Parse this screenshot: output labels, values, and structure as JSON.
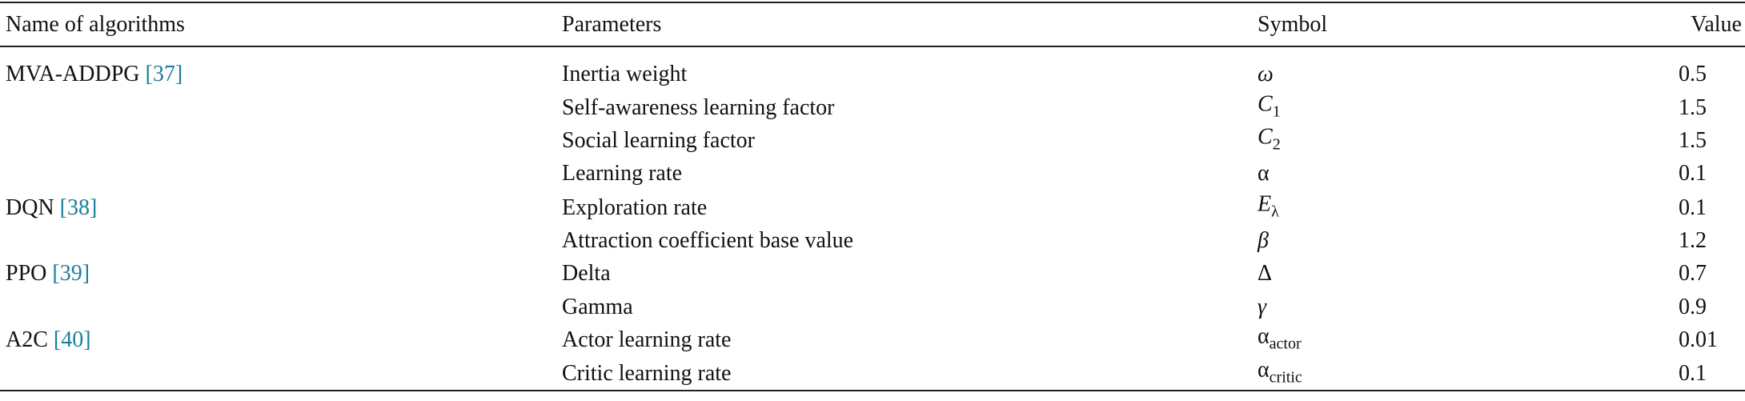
{
  "table": {
    "header": [
      "Name of algorithms",
      "Parameters",
      "Symbol",
      "Value"
    ],
    "rows": [
      {
        "algorithm": "MVA-ADDPG",
        "ref": "[37]",
        "parameter": "Inertia weight",
        "symbol": {
          "base": "ω",
          "italic": true
        },
        "value": "0.5"
      },
      {
        "parameter": "Self-awareness learning factor",
        "symbol": {
          "base": "C",
          "sub": "1",
          "italic": true
        },
        "value": "1.5"
      },
      {
        "parameter": "Social learning factor",
        "symbol": {
          "base": "C",
          "sub": "2",
          "italic": true
        },
        "value": "1.5"
      },
      {
        "parameter": "Learning rate",
        "symbol": {
          "base": "α",
          "italic": false
        },
        "value": "0.1"
      },
      {
        "algorithm": "DQN",
        "ref": "[38]",
        "parameter": "Exploration rate",
        "symbol": {
          "base": "E",
          "sub": "λ",
          "italic": true
        },
        "value": "0.1"
      },
      {
        "parameter": "Attraction coefficient base value",
        "symbol": {
          "base": "β",
          "italic": true
        },
        "value": "1.2"
      },
      {
        "algorithm": "PPO",
        "ref": "[39]",
        "parameter": "Delta",
        "symbol": {
          "base": "Δ",
          "italic": false
        },
        "value": "0.7"
      },
      {
        "parameter": "Gamma",
        "symbol": {
          "base": "γ",
          "italic": true
        },
        "value": "0.9"
      },
      {
        "algorithm": "A2C",
        "ref": "[40]",
        "parameter": "Actor learning rate",
        "symbol": {
          "base": "α",
          "sub": "actor",
          "italic": false
        },
        "value": "0.01"
      },
      {
        "parameter": "Critic learning rate",
        "symbol": {
          "base": "α",
          "sub": "critic",
          "italic": false
        },
        "value": "0.1"
      }
    ]
  }
}
